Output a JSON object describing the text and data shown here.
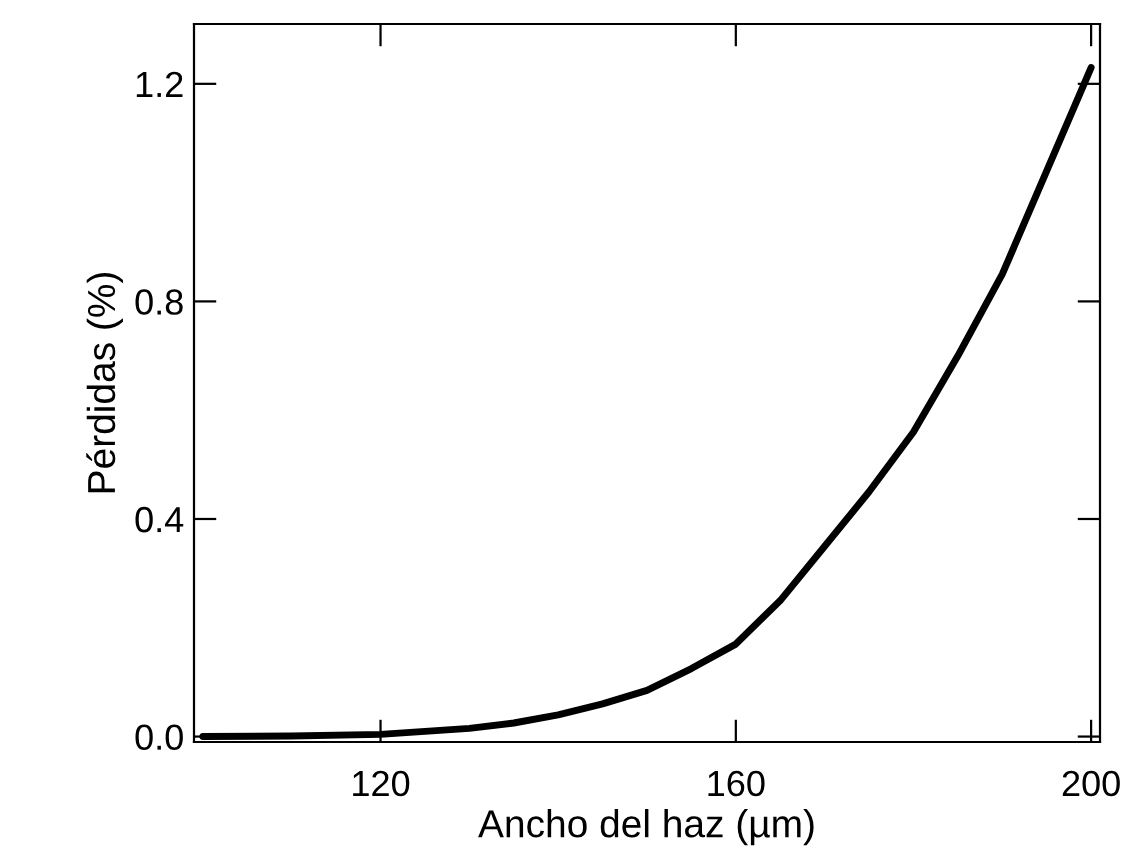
{
  "chart_data": {
    "type": "line",
    "xlabel": "Ancho del haz (µm)",
    "ylabel": "Pérdidas (%)",
    "x": [
      100,
      110,
      120,
      130,
      135,
      140,
      145,
      150,
      155,
      160,
      165,
      170,
      175,
      180,
      185,
      190,
      195,
      200
    ],
    "series": [
      {
        "color": "#000000",
        "values": [
          0.0,
          0.001,
          0.004,
          0.015,
          0.025,
          0.04,
          0.06,
          0.085,
          0.125,
          0.17,
          0.25,
          0.35,
          0.45,
          0.56,
          0.7,
          0.85,
          1.04,
          1.23
        ]
      }
    ],
    "xlim": [
      99,
      201
    ],
    "xticks": [
      120,
      160,
      200
    ],
    "ylim": [
      -0.01,
      1.31
    ],
    "yticks": [
      {
        "value": 0,
        "label": "0.0"
      },
      0.4,
      0.8,
      1.2
    ],
    "grid": false,
    "marker": "none",
    "line_style": "solid"
  }
}
